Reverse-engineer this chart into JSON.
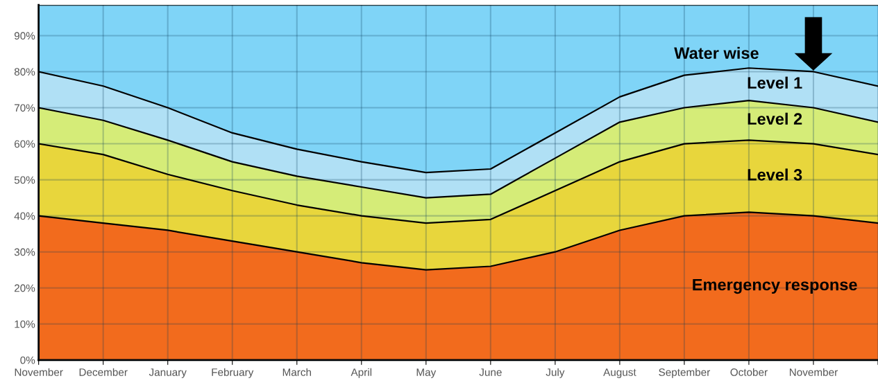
{
  "chart_data": {
    "type": "area",
    "stacked": true,
    "categories": [
      "November",
      "December",
      "January",
      "February",
      "March",
      "April",
      "May",
      "June",
      "July",
      "August",
      "September",
      "October",
      "November",
      null
    ],
    "series": [
      {
        "name": "Emergency response",
        "color": "#f26b1d",
        "values": [
          40,
          38,
          36,
          33,
          30,
          27,
          25,
          26,
          30,
          36,
          40,
          41,
          40,
          38
        ]
      },
      {
        "name": "Level 3",
        "color": "#e8d63c",
        "values": [
          20,
          19,
          15.5,
          14,
          13,
          13,
          13,
          13,
          17,
          19,
          20,
          20,
          20,
          19
        ]
      },
      {
        "name": "Level 2",
        "color": "#d5ec78",
        "values": [
          10,
          9.5,
          9.5,
          8,
          8,
          8,
          7,
          7,
          9,
          11,
          10,
          11,
          10,
          9
        ]
      },
      {
        "name": "Level 1",
        "color": "#b0e0f5",
        "values": [
          10,
          9.5,
          9,
          8,
          7.5,
          7,
          7,
          7,
          7,
          7,
          9,
          9,
          10,
          10
        ]
      },
      {
        "name": "Water wise",
        "color": "#7fd4f7",
        "values": [
          18.5,
          22.5,
          28.5,
          35.5,
          40,
          43.5,
          46.5,
          45.5,
          35.5,
          25.5,
          19.5,
          17.5,
          18.5,
          22.5
        ]
      }
    ],
    "ylim": [
      0,
      98.5
    ],
    "yticks": [
      {
        "value": 0,
        "label": "0%"
      },
      {
        "value": 10,
        "label": "10%"
      },
      {
        "value": 20,
        "label": "20%"
      },
      {
        "value": 30,
        "label": "30%"
      },
      {
        "value": 40,
        "label": "40%"
      },
      {
        "value": 50,
        "label": "50%"
      },
      {
        "value": 60,
        "label": "60%"
      },
      {
        "value": 70,
        "label": "70%"
      },
      {
        "value": 80,
        "label": "80%"
      },
      {
        "value": 90,
        "label": "90%"
      }
    ],
    "grid": true,
    "legend": false
  }
}
